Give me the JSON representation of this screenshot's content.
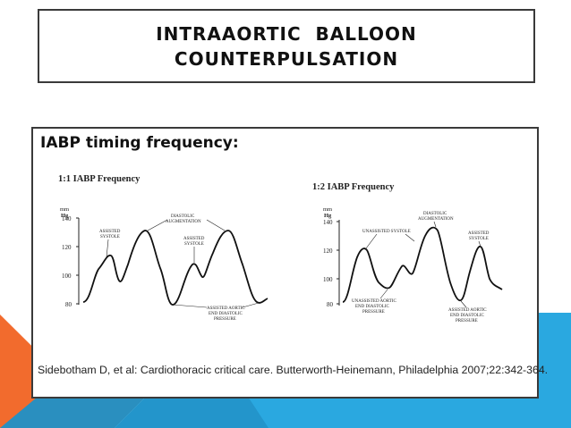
{
  "slide": {
    "title_line1": "INTRAAORTIC  BALLOON",
    "title_line2": "COUNTERPULSATION",
    "heading": "IABP timing frequency:",
    "citation": "Sidebotham D, et al: Cardiothoracic critical care. Butterworth-Heinemann, Philadelphia 2007;22:342-364."
  },
  "figure1": {
    "title": "1:1 IABP Frequency",
    "unit_top": "mm",
    "unit_bottom": "Hg",
    "ticks": [
      "140",
      "120",
      "100",
      "80"
    ],
    "label_assisted_systole": [
      "ASSISTED",
      "SYSTOLE"
    ],
    "label_diastolic_aug": [
      "DIASTOLIC",
      "AUGMENTATION"
    ],
    "label_assisted_systole2": [
      "ASSISTED",
      "SYSTOLE"
    ],
    "label_aedp": [
      "ASSISTED AORTIC",
      "END DIASTOLIC",
      "PRESSURE"
    ]
  },
  "figure2": {
    "title": "1:2 IABP Frequency",
    "unit_top": "mm",
    "unit_bottom": "Hg",
    "ticks": [
      "140",
      "120",
      "100",
      "80"
    ],
    "label_unassisted_systole": "UNASSISTED SYSTOLE",
    "label_diastolic_aug": [
      "DIASTOLIC",
      "AUGMENTATION"
    ],
    "label_assisted_systole": [
      "ASSISTED",
      "SYSTOLE"
    ],
    "label_uaedp": [
      "UNASSISTED AORTIC",
      "END DIASTOLIC",
      "PRESSURE"
    ],
    "label_aedp": [
      "ASSISTED AORTIC",
      "END DIASTOLIC",
      "PRESSURE"
    ]
  },
  "colors": {
    "accent_orange": "#f26b2d",
    "accent_blue": "#2aa8e0",
    "accent_dark_blue": "#2a8fbf",
    "border": "#3a3a3a"
  }
}
